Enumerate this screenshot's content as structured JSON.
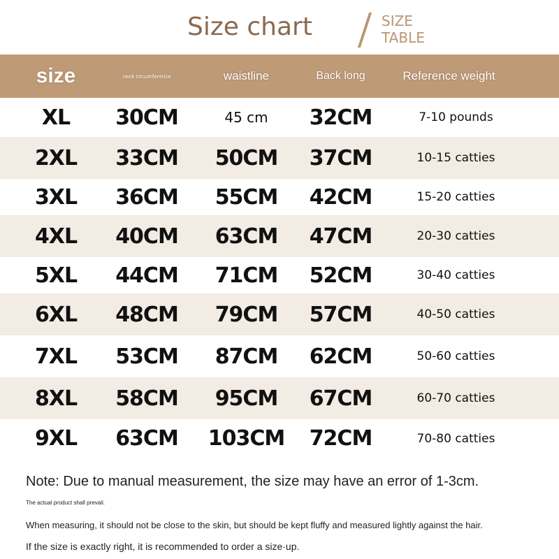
{
  "title": "Size chart",
  "subtitle": [
    "SIZE",
    "TABLE"
  ],
  "colors": {
    "header": "#bf9a76",
    "title": "#8a6a4f",
    "alt_row": "#f3ece4"
  },
  "headers": [
    "size",
    "neck circumference",
    "waistline",
    "Back long",
    "Reference weight"
  ],
  "rows": [
    [
      "XL",
      "30CM",
      "45 cm",
      "32CM",
      "7-10 pounds"
    ],
    [
      "2XL",
      "33CM",
      "50CM",
      "37CM",
      "10-15 catties"
    ],
    [
      "3XL",
      "36CM",
      "55CM",
      "42CM",
      "15-20 catties"
    ],
    [
      "4XL",
      "40CM",
      "63CM",
      "47CM",
      "20-30 catties"
    ],
    [
      "5XL",
      "44CM",
      "71CM",
      "52CM",
      "30-40 catties"
    ],
    [
      "6XL",
      "48CM",
      "79CM",
      "57CM",
      "40-50 catties"
    ],
    [
      "7XL",
      "53CM",
      "87CM",
      "62CM",
      "50-60 catties"
    ],
    [
      "8XL",
      "58CM",
      "95CM",
      "67CM",
      "60-70 catties"
    ],
    [
      "9XL",
      "63CM",
      "103CM",
      "72CM",
      "70-80 catties"
    ]
  ],
  "notes": [
    "Note: Due to manual measurement, the size may have an error of 1-3cm.",
    "The actual product shall prevail.",
    "When measuring, it should not be close to the skin, but should be kept fluffy and measured lightly against the hair.",
    "If the size is exactly right, it is recommended to order a size·up."
  ]
}
